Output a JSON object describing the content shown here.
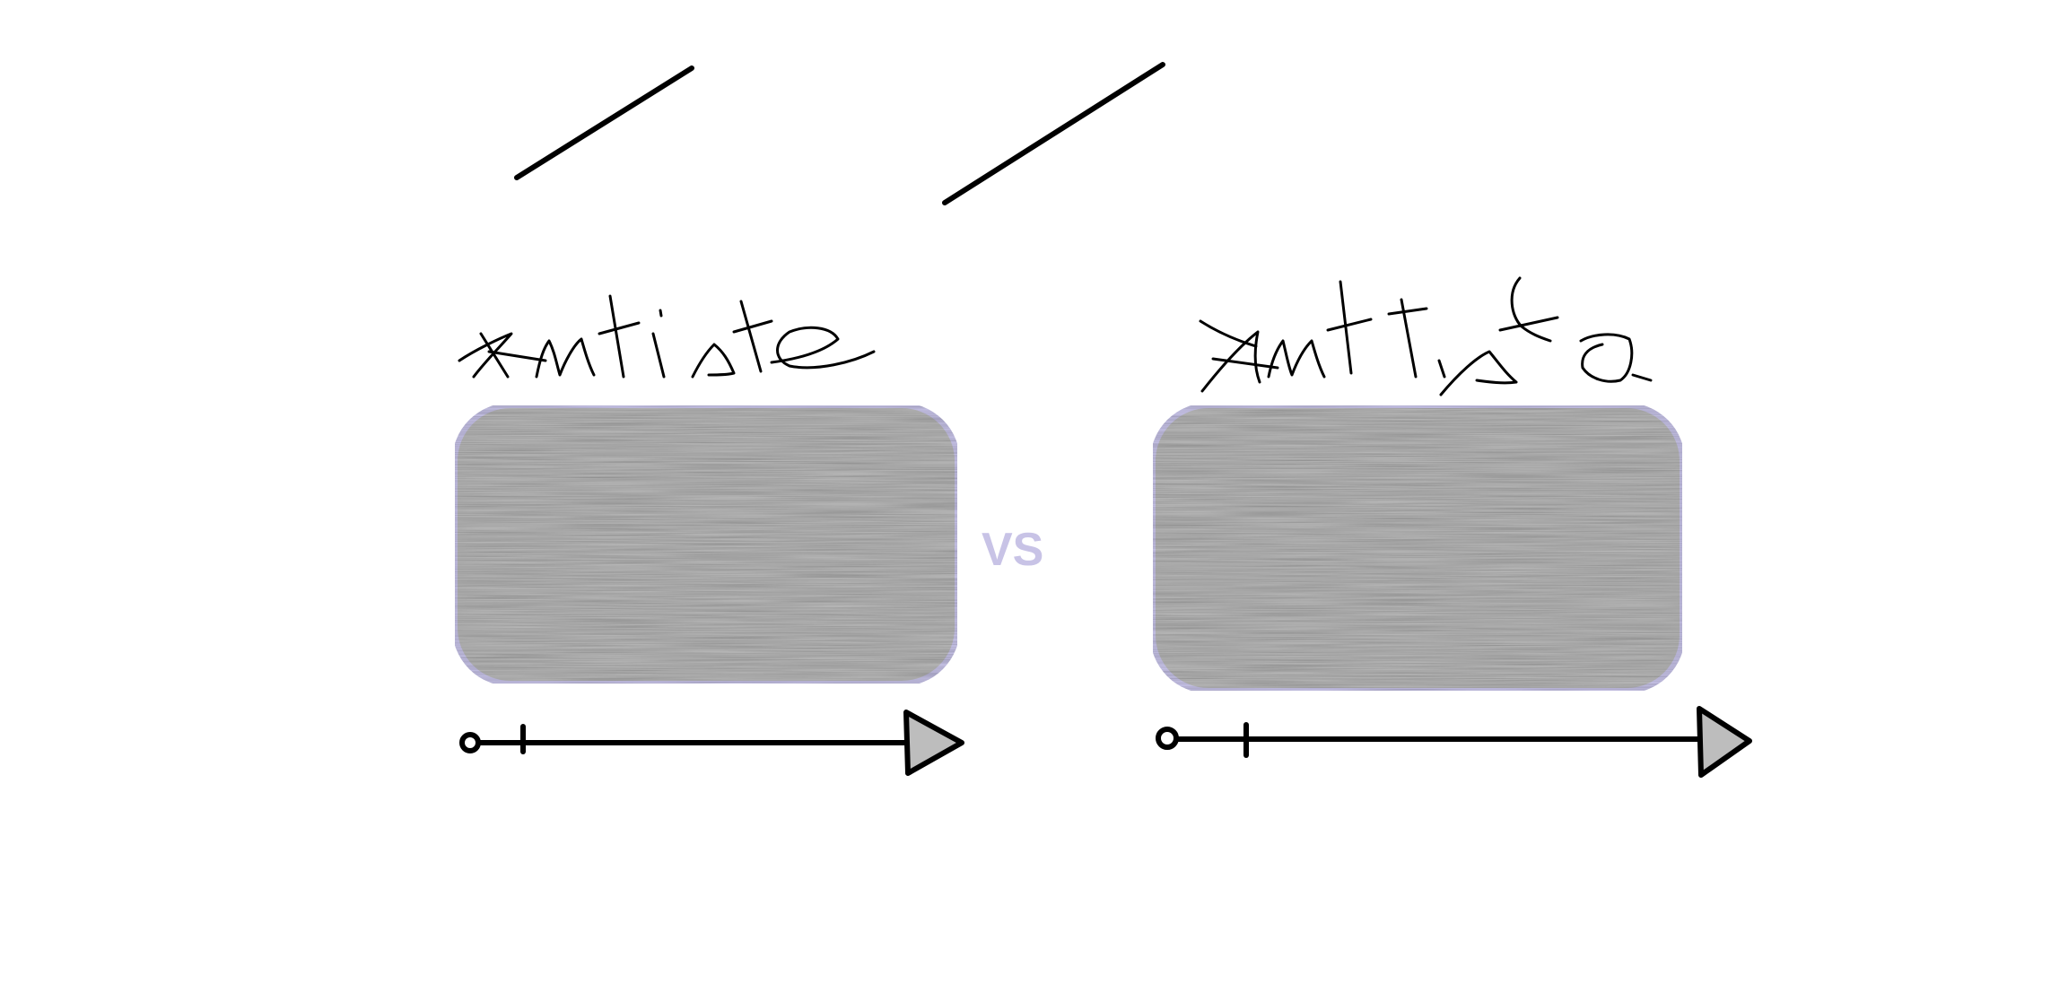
{
  "comparison": {
    "separator_label": "VS",
    "separator_color": "#c8c3e6"
  },
  "panels": [
    {
      "id": "left",
      "handwritten_label": "Artiste",
      "card_fill": "#b4b4b4",
      "card_border": "#c3bfe3"
    },
    {
      "id": "right",
      "handwritten_label": "Artiste",
      "card_fill": "#b4b4b4",
      "card_border": "#c3bfe3"
    }
  ],
  "timeline": {
    "stroke_color": "#000000",
    "arrow_fill": "#bdbdbd"
  },
  "top_strokes": {
    "color": "#000000",
    "count": 2
  }
}
